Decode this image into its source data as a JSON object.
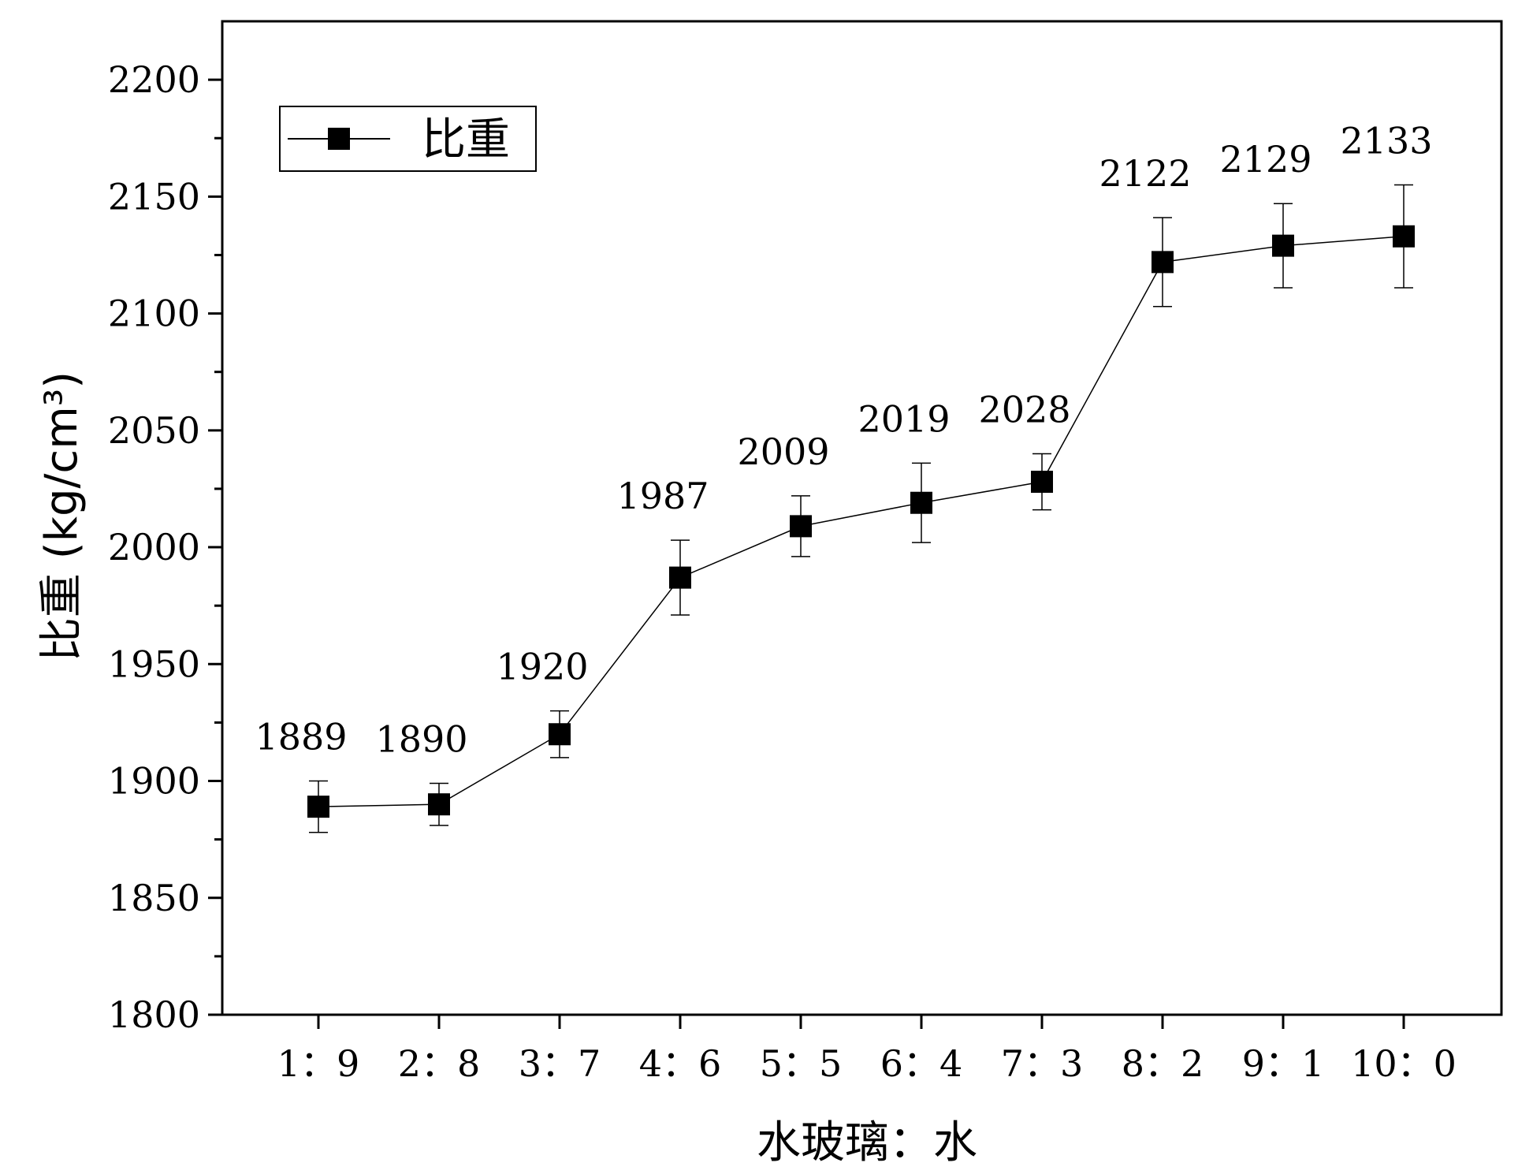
{
  "chart_data": {
    "type": "line",
    "categories": [
      "1：9",
      "2：8",
      "3：7",
      "4：6",
      "5：5",
      "6：4",
      "7：3",
      "8：2",
      "9：1",
      "10：0"
    ],
    "series": [
      {
        "name": "比重",
        "values": [
          1889,
          1890,
          1920,
          1987,
          2009,
          2019,
          2028,
          2122,
          2129,
          2133
        ],
        "error_low": [
          1878,
          1881,
          1910,
          1971,
          1996,
          2002,
          2016,
          2103,
          2111,
          2111
        ],
        "error_high": [
          1900,
          1899,
          1930,
          2003,
          2022,
          2036,
          2040,
          2141,
          2147,
          2155
        ],
        "marker": "square",
        "color": "#000000"
      }
    ],
    "data_labels": [
      "1889",
      "1890",
      "1920",
      "1987",
      "2009",
      "2019",
      "2028",
      "2122",
      "2129",
      "2133"
    ],
    "xlabel": "水玻璃：水",
    "ylabel": "比重 (kg/cm³)",
    "ylim": [
      1800,
      2225
    ],
    "yticks": [
      1800,
      1850,
      1900,
      1950,
      2000,
      2050,
      2100,
      2150,
      2200
    ],
    "ytick_labels": [
      "1800",
      "1850",
      "1900",
      "1950",
      "2000",
      "2050",
      "2100",
      "2150",
      "2200"
    ],
    "grid": false,
    "legend_position": "top-left"
  }
}
